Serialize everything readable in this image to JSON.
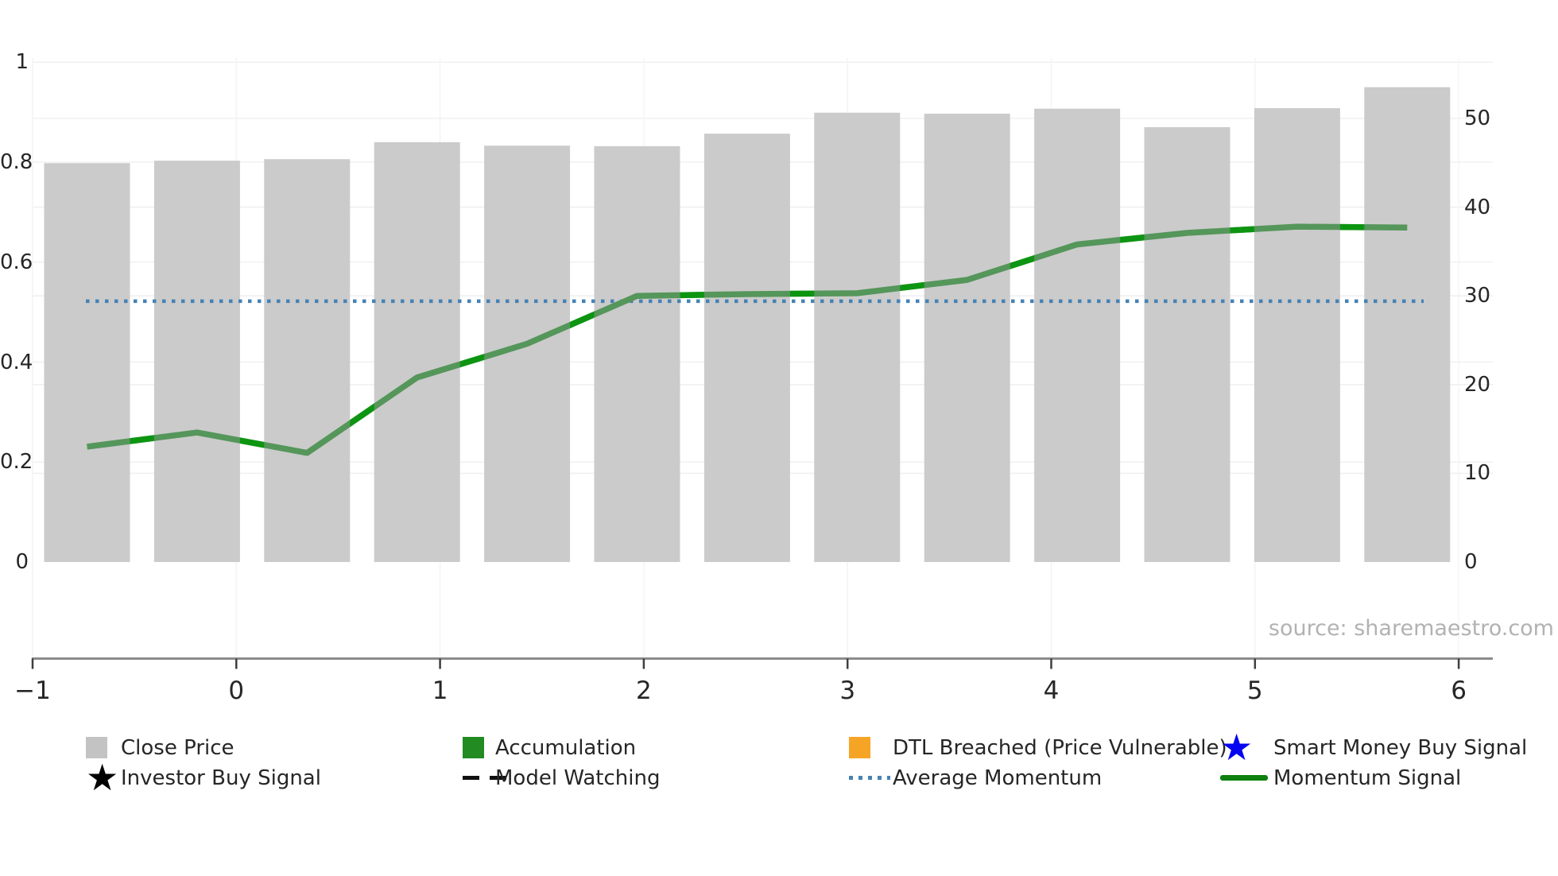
{
  "chart_data": {
    "type": "bar+line",
    "title": "",
    "x_axis": {
      "tick_labels": [
        "−1",
        "0",
        "1",
        "2",
        "3",
        "4",
        "5",
        "6"
      ],
      "tick_values": [
        -1,
        0,
        1,
        2,
        3,
        4,
        5,
        6
      ]
    },
    "left_axis": {
      "tick_labels": [
        "1",
        "0.8",
        "0.6",
        "0.4",
        "0.2",
        "0"
      ],
      "tick_values": [
        1,
        0.8,
        0.6,
        0.4,
        0.2,
        0
      ],
      "range": [
        0,
        1
      ]
    },
    "right_axis": {
      "tick_labels": [
        "50",
        "40",
        "30",
        "20",
        "10",
        "0"
      ],
      "tick_values": [
        50,
        40,
        30,
        20,
        10,
        0
      ],
      "range": [
        0,
        55
      ]
    },
    "bars": {
      "name": "Close Price",
      "axis": "left",
      "color": "#cbcbcb",
      "values": [
        0.798,
        0.803,
        0.806,
        0.84,
        0.833,
        0.832,
        0.857,
        0.899,
        0.897,
        0.907,
        0.87,
        0.908,
        0.95
      ]
    },
    "momentum": {
      "name": "Momentum Signal",
      "axis": "right",
      "color": "#55965a",
      "accent_color": "#0d9512",
      "values": [
        13.0,
        14.6,
        12.3,
        20.8,
        24.6,
        30.0,
        30.2,
        30.3,
        31.8,
        35.8,
        37.1,
        37.8,
        37.7
      ]
    },
    "average_momentum": {
      "name": "Average Momentum",
      "axis": "right",
      "color": "#4682b4",
      "value": 29.4
    },
    "grid": true,
    "legend_position": "bottom",
    "legend": [
      {
        "label": "Close Price",
        "marker": "square",
        "color": "#c3c3c3"
      },
      {
        "label": "Accumulation",
        "marker": "square",
        "color": "#228b22"
      },
      {
        "label": "DTL Breached (Price Vulnerable)",
        "marker": "square",
        "color": "#f6a426"
      },
      {
        "label": "Smart Money Buy Signal",
        "marker": "star",
        "color": "#0505f0"
      },
      {
        "label": "Investor Buy Signal",
        "marker": "star",
        "color": "#000000"
      },
      {
        "label": "Model Watching",
        "marker": "dashes",
        "color": "#111111"
      },
      {
        "label": "Average Momentum",
        "marker": "dots",
        "color": "#4682b4"
      },
      {
        "label": "Momentum Signal",
        "marker": "line",
        "color": "#0e800e"
      }
    ]
  },
  "source_note": "source: sharemaestro.com"
}
